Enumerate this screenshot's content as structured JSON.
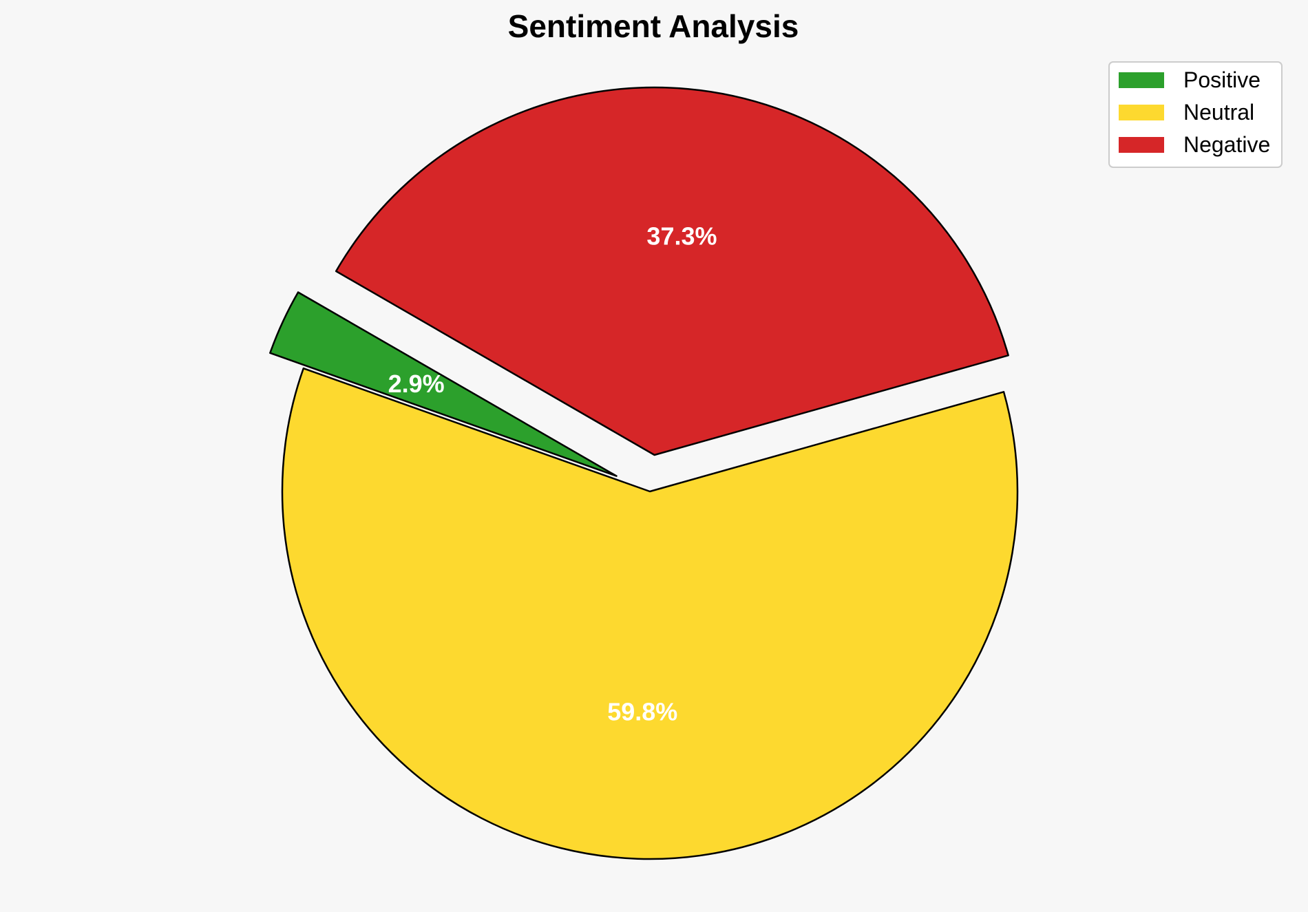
{
  "chart_data": {
    "type": "pie",
    "title": "Sentiment Analysis",
    "categories": [
      "Positive",
      "Neutral",
      "Negative"
    ],
    "values": [
      2.9,
      59.8,
      37.3
    ],
    "labels": [
      "2.9%",
      "59.8%",
      "37.3%"
    ],
    "colors": [
      "#2ca02c",
      "#fdd92f",
      "#d62628"
    ],
    "exploded": [
      true,
      false,
      true
    ],
    "edge_color": "#000000",
    "legend": {
      "placement": "top-right",
      "entries": [
        "Positive",
        "Neutral",
        "Negative"
      ]
    },
    "background": "#f7f7f7"
  }
}
